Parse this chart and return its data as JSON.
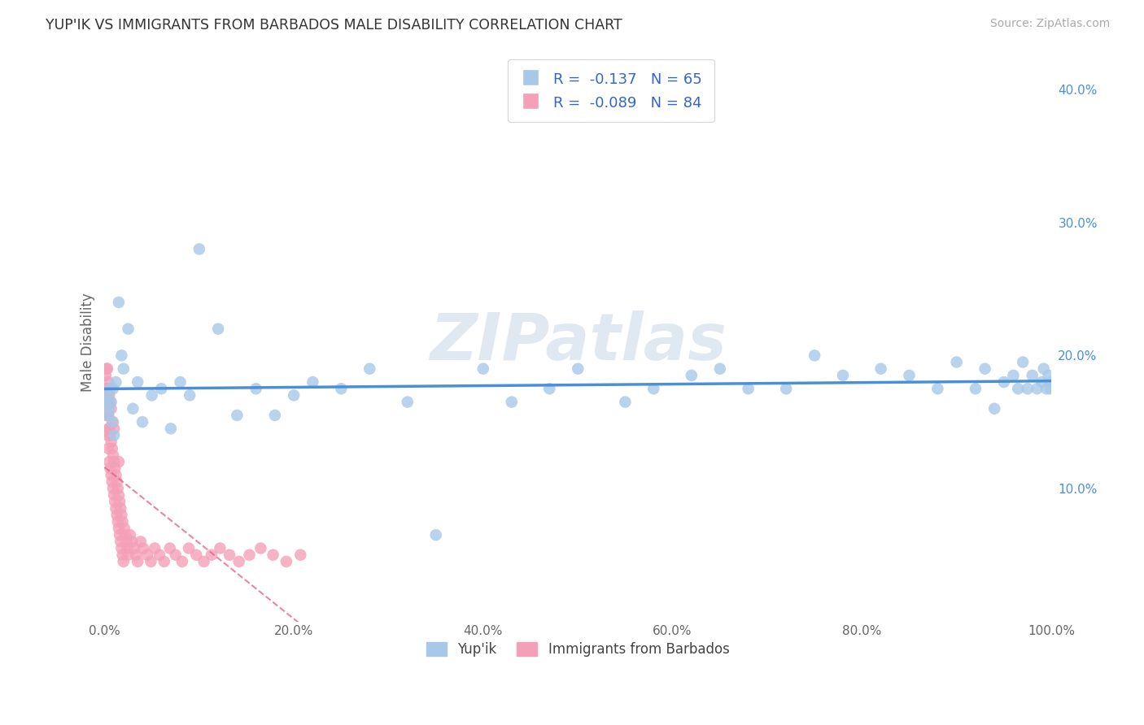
{
  "title": "YUP'IK VS IMMIGRANTS FROM BARBADOS MALE DISABILITY CORRELATION CHART",
  "source_text": "Source: ZipAtlas.com",
  "ylabel": "Male Disability",
  "legend_labels": [
    "Yup'ik",
    "Immigrants from Barbados"
  ],
  "r_yupik": -0.137,
  "n_yupik": 65,
  "r_barbados": -0.089,
  "n_barbados": 84,
  "yupik_color": "#a8c8e8",
  "barbados_color": "#f4a0b8",
  "trendline_yupik_color": "#4a90d9",
  "trendline_barbados_color": "#e06080",
  "background_color": "#ffffff",
  "watermark_color": "#c8d8e8",
  "xlim": [
    0.0,
    1.0
  ],
  "ylim": [
    0.0,
    0.42
  ],
  "xtick_labels": [
    "0.0%",
    "20.0%",
    "40.0%",
    "60.0%",
    "80.0%",
    "100.0%"
  ],
  "xtick_values": [
    0.0,
    0.2,
    0.4,
    0.6,
    0.8,
    1.0
  ],
  "ytick_labels": [
    "10.0%",
    "20.0%",
    "30.0%",
    "40.0%"
  ],
  "ytick_values": [
    0.1,
    0.2,
    0.3,
    0.4
  ],
  "yupik_x": [
    0.002,
    0.003,
    0.004,
    0.005,
    0.006,
    0.007,
    0.008,
    0.009,
    0.01,
    0.012,
    0.015,
    0.018,
    0.02,
    0.025,
    0.03,
    0.035,
    0.04,
    0.05,
    0.06,
    0.07,
    0.08,
    0.09,
    0.1,
    0.12,
    0.14,
    0.16,
    0.18,
    0.2,
    0.22,
    0.25,
    0.28,
    0.32,
    0.35,
    0.4,
    0.43,
    0.47,
    0.5,
    0.55,
    0.58,
    0.62,
    0.65,
    0.68,
    0.72,
    0.75,
    0.78,
    0.82,
    0.85,
    0.88,
    0.9,
    0.92,
    0.93,
    0.94,
    0.95,
    0.96,
    0.965,
    0.97,
    0.975,
    0.98,
    0.985,
    0.99,
    0.992,
    0.995,
    0.997,
    0.999,
    1.0
  ],
  "yupik_y": [
    0.165,
    0.17,
    0.155,
    0.16,
    0.175,
    0.165,
    0.15,
    0.175,
    0.14,
    0.18,
    0.24,
    0.2,
    0.19,
    0.22,
    0.16,
    0.18,
    0.15,
    0.17,
    0.175,
    0.145,
    0.18,
    0.17,
    0.28,
    0.22,
    0.155,
    0.175,
    0.155,
    0.17,
    0.18,
    0.175,
    0.19,
    0.165,
    0.065,
    0.19,
    0.165,
    0.175,
    0.19,
    0.165,
    0.175,
    0.185,
    0.19,
    0.175,
    0.175,
    0.2,
    0.185,
    0.19,
    0.185,
    0.175,
    0.195,
    0.175,
    0.19,
    0.16,
    0.18,
    0.185,
    0.175,
    0.195,
    0.175,
    0.185,
    0.175,
    0.18,
    0.19,
    0.175,
    0.185,
    0.175,
    0.18
  ],
  "barbados_x": [
    0.0005,
    0.001,
    0.001,
    0.0015,
    0.002,
    0.002,
    0.0025,
    0.003,
    0.003,
    0.003,
    0.0035,
    0.004,
    0.004,
    0.004,
    0.0045,
    0.005,
    0.005,
    0.005,
    0.006,
    0.006,
    0.006,
    0.007,
    0.007,
    0.007,
    0.008,
    0.008,
    0.009,
    0.009,
    0.009,
    0.01,
    0.01,
    0.01,
    0.011,
    0.011,
    0.012,
    0.012,
    0.013,
    0.013,
    0.014,
    0.014,
    0.015,
    0.015,
    0.015,
    0.016,
    0.016,
    0.017,
    0.017,
    0.018,
    0.018,
    0.019,
    0.019,
    0.02,
    0.021,
    0.022,
    0.023,
    0.024,
    0.025,
    0.027,
    0.029,
    0.031,
    0.033,
    0.035,
    0.038,
    0.041,
    0.045,
    0.049,
    0.053,
    0.058,
    0.063,
    0.069,
    0.075,
    0.082,
    0.089,
    0.097,
    0.105,
    0.113,
    0.122,
    0.132,
    0.142,
    0.153,
    0.165,
    0.178,
    0.192,
    0.207
  ],
  "barbados_y": [
    0.165,
    0.16,
    0.185,
    0.17,
    0.155,
    0.19,
    0.175,
    0.14,
    0.165,
    0.19,
    0.155,
    0.13,
    0.155,
    0.18,
    0.145,
    0.12,
    0.145,
    0.17,
    0.115,
    0.14,
    0.165,
    0.11,
    0.135,
    0.16,
    0.105,
    0.13,
    0.1,
    0.125,
    0.15,
    0.095,
    0.12,
    0.145,
    0.09,
    0.115,
    0.085,
    0.11,
    0.08,
    0.105,
    0.075,
    0.1,
    0.07,
    0.095,
    0.12,
    0.065,
    0.09,
    0.06,
    0.085,
    0.055,
    0.08,
    0.05,
    0.075,
    0.045,
    0.07,
    0.065,
    0.06,
    0.055,
    0.05,
    0.065,
    0.06,
    0.055,
    0.05,
    0.045,
    0.06,
    0.055,
    0.05,
    0.045,
    0.055,
    0.05,
    0.045,
    0.055,
    0.05,
    0.045,
    0.055,
    0.05,
    0.045,
    0.05,
    0.055,
    0.05,
    0.045,
    0.05,
    0.055,
    0.05,
    0.045,
    0.05
  ]
}
